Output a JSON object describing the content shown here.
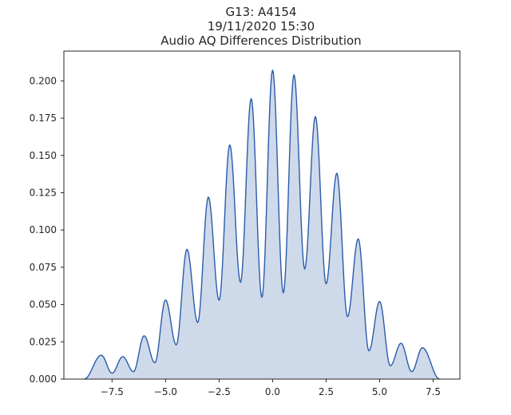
{
  "chart_data": {
    "type": "area",
    "title_lines": [
      "G13: A4154",
      "19/11/2020 15:30",
      "Audio AQ Differences Distribution"
    ],
    "xlabel": "",
    "ylabel": "",
    "xlim": [
      -9.75,
      8.75
    ],
    "ylim": [
      0,
      0.22
    ],
    "x_ticks": [
      -7.5,
      -5.0,
      -2.5,
      0.0,
      2.5,
      5.0,
      7.5
    ],
    "x_tick_labels": [
      "−7.5",
      "−5.0",
      "−2.5",
      "0.0",
      "2.5",
      "5.0",
      "7.5"
    ],
    "y_ticks": [
      0.0,
      0.025,
      0.05,
      0.075,
      0.1,
      0.125,
      0.15,
      0.175,
      0.2
    ],
    "y_tick_labels": [
      "0.000",
      "0.025",
      "0.050",
      "0.075",
      "0.100",
      "0.125",
      "0.150",
      "0.175",
      "0.200"
    ],
    "grid": false,
    "line_color": "#2b5caa",
    "fill_color": "#ced9ea",
    "peaks": [
      {
        "x": -8,
        "y": 0.016
      },
      {
        "x": -7,
        "y": 0.015
      },
      {
        "x": -6,
        "y": 0.029
      },
      {
        "x": -5,
        "y": 0.053
      },
      {
        "x": -4,
        "y": 0.087
      },
      {
        "x": -3,
        "y": 0.122
      },
      {
        "x": -2,
        "y": 0.157
      },
      {
        "x": -1,
        "y": 0.188
      },
      {
        "x": 0,
        "y": 0.207
      },
      {
        "x": 1,
        "y": 0.204
      },
      {
        "x": 2,
        "y": 0.176
      },
      {
        "x": 3,
        "y": 0.138
      },
      {
        "x": 4,
        "y": 0.094
      },
      {
        "x": 5,
        "y": 0.052
      },
      {
        "x": 6,
        "y": 0.024
      },
      {
        "x": 7,
        "y": 0.021
      }
    ],
    "troughs": [
      {
        "x": -7.5,
        "y": 0.004
      },
      {
        "x": -6.5,
        "y": 0.005
      },
      {
        "x": -5.5,
        "y": 0.011
      },
      {
        "x": -4.5,
        "y": 0.023
      },
      {
        "x": -3.5,
        "y": 0.038
      },
      {
        "x": -2.5,
        "y": 0.053
      },
      {
        "x": -1.5,
        "y": 0.065
      },
      {
        "x": -0.5,
        "y": 0.055
      },
      {
        "x": 0.5,
        "y": 0.058
      },
      {
        "x": 1.5,
        "y": 0.074
      },
      {
        "x": 2.5,
        "y": 0.064
      },
      {
        "x": 3.5,
        "y": 0.042
      },
      {
        "x": 4.5,
        "y": 0.019
      },
      {
        "x": 5.5,
        "y": 0.009
      },
      {
        "x": 6.5,
        "y": 0.005
      }
    ],
    "support": [
      -8.8,
      7.8
    ]
  }
}
